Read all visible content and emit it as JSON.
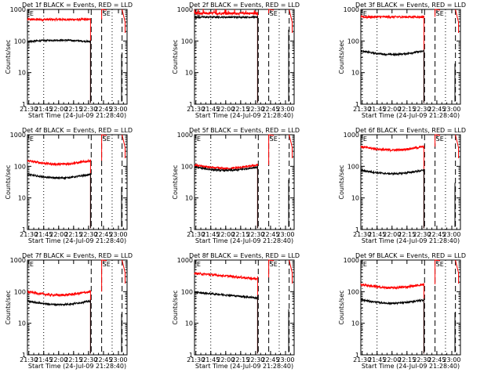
{
  "chart_data": {
    "type": "line",
    "layout": "3x3 grid",
    "xlabel": "Start Time (24-Jul-09 21:28:40)",
    "ylabel": "Counts/sec",
    "x_ticks": [
      "21:30",
      "21:45",
      "22:00",
      "22:15",
      "22:30",
      "22:45",
      "23:00"
    ],
    "x_tick_minutes": [
      1.33,
      16.33,
      31.33,
      46.33,
      61.33,
      76.33,
      91.33
    ],
    "xlim_minutes": [
      0,
      100
    ],
    "y_scale": "log",
    "ylim": [
      1,
      1000
    ],
    "y_ticks": [
      "1",
      "10",
      "100",
      "1000"
    ],
    "y_tick_values": [
      1,
      10,
      100,
      1000
    ],
    "markers": [
      {
        "label": "E",
        "x_minutes": 1.5,
        "style": "dotted"
      },
      {
        "label": "",
        "x_minutes": 16.3,
        "style": "dotted"
      },
      {
        "label": "",
        "x_minutes": 64.0,
        "style": "dashed"
      },
      {
        "label": "SE",
        "x_minutes": 74.5,
        "style": "dashed"
      },
      {
        "label": "",
        "x_minutes": 85.0,
        "style": "dotted"
      },
      {
        "label": "",
        "x_minutes": 95.0,
        "style": "dashed"
      }
    ],
    "series_colors": {
      "events": "#000000",
      "lld": "#ff0000"
    },
    "panels": [
      {
        "title": "Det 1f BLACK = Events, RED = LLD",
        "events": 95,
        "lld": 480,
        "events_shape": "bump",
        "lld_shape": "flat",
        "lld_spikes": false
      },
      {
        "title": "Det 2f BLACK = Events, RED = LLD",
        "events": 570,
        "lld": 750,
        "events_shape": "flat",
        "lld_shape": "flat",
        "lld_spikes": true
      },
      {
        "title": "Det 3f BLACK = Events, RED = LLD",
        "events": 48,
        "lld": 580,
        "events_shape": "dip",
        "lld_shape": "flat",
        "lld_spikes": false
      },
      {
        "title": "Det 4f BLACK = Events, RED = LLD",
        "events": 55,
        "lld": 150,
        "events_shape": "dip",
        "lld_shape": "dip",
        "lld_spikes": false
      },
      {
        "title": "Det 5f BLACK = Events, RED = LLD",
        "events": 95,
        "lld": 110,
        "events_shape": "dip",
        "lld_shape": "dip",
        "lld_spikes": false
      },
      {
        "title": "Det 6f BLACK = Events, RED = LLD",
        "events": 75,
        "lld": 420,
        "events_shape": "dip",
        "lld_shape": "dip",
        "lld_spikes": false
      },
      {
        "title": "Det 7f BLACK = Events, RED = LLD",
        "events": 50,
        "lld": 100,
        "events_shape": "dip",
        "lld_shape": "dip",
        "lld_spikes": false
      },
      {
        "title": "Det 8f BLACK = Events, RED = LLD",
        "events": 70,
        "lld": 280,
        "events_shape": "decay",
        "lld_shape": "decay",
        "lld_spikes": false
      },
      {
        "title": "Det 9f BLACK = Events, RED = LLD",
        "events": 55,
        "lld": 170,
        "events_shape": "dip",
        "lld_shape": "dip",
        "lld_spikes": false
      }
    ]
  }
}
